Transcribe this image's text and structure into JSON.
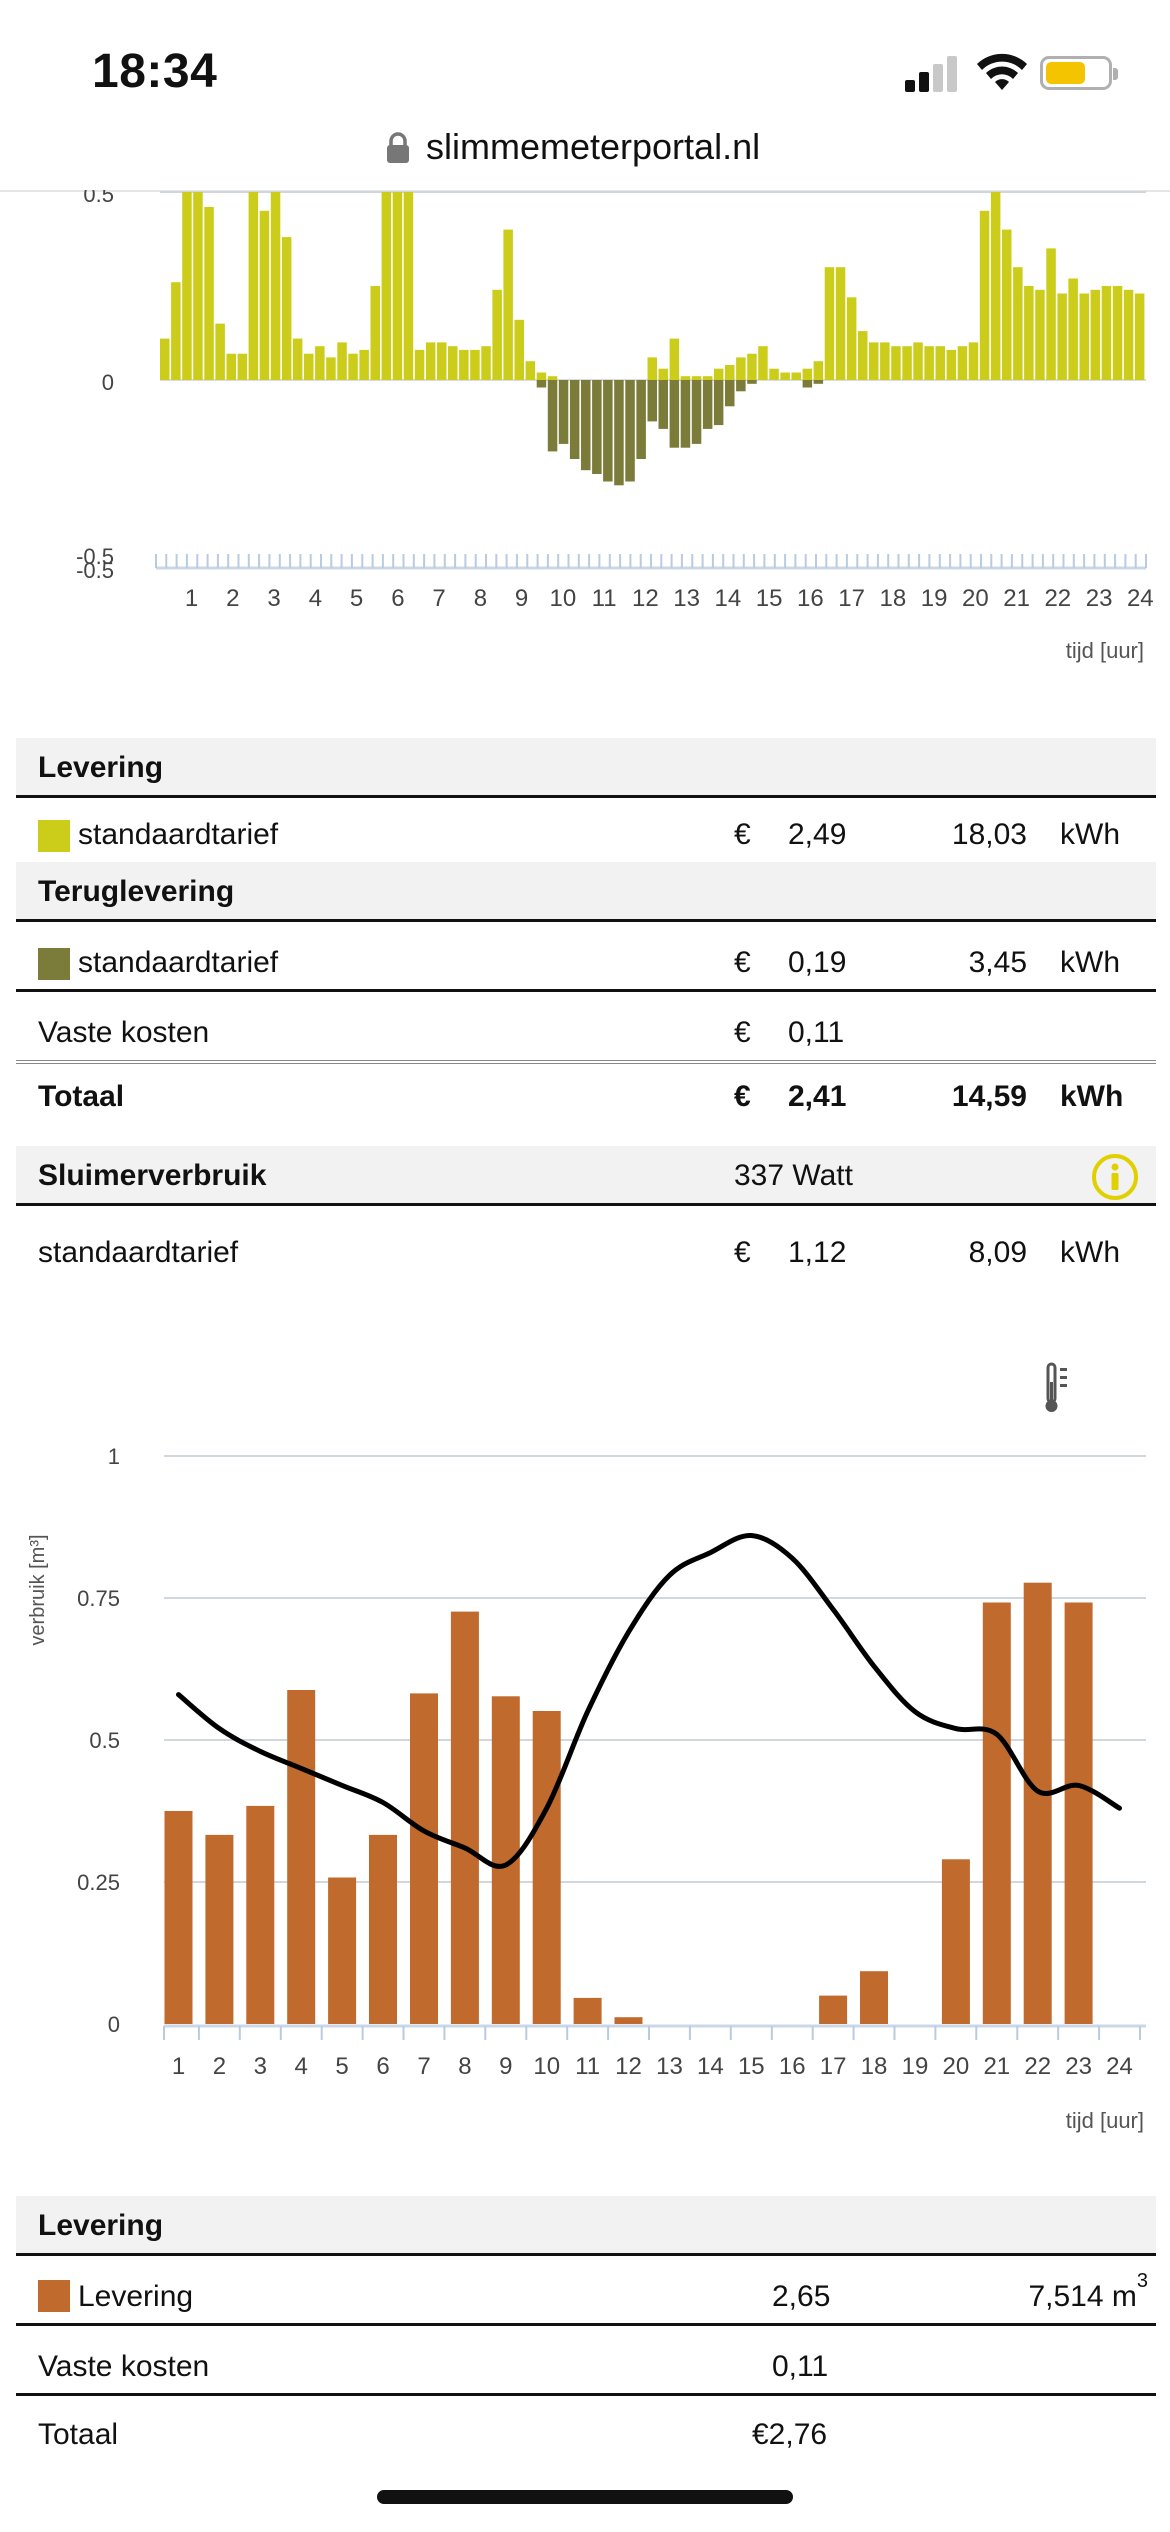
{
  "status": {
    "time": "18:34",
    "url": "slimmemeterportal.nl",
    "battery_level": 0.65,
    "signal_bars": 2,
    "battery_color": "#f5c400"
  },
  "colors": {
    "levering": "#cccc1a",
    "teruglevering": "#7b7b3a",
    "gas": "#c06a2e",
    "info": "#e0d000"
  },
  "electricity_chart": {
    "chart_data": {
      "type": "bar",
      "ytick_labels": [
        "0.5",
        "0",
        "-0.5"
      ],
      "yticks": [
        0.5,
        0,
        -0.5
      ],
      "ylim": [
        -0.5,
        0.5
      ],
      "xtick_labels": [
        "1",
        "2",
        "3",
        "4",
        "5",
        "6",
        "7",
        "8",
        "9",
        "10",
        "11",
        "12",
        "13",
        "14",
        "15",
        "16",
        "17",
        "18",
        "19",
        "20",
        "21",
        "22",
        "23",
        "24"
      ],
      "xlabel": "tijd [uur]",
      "levering_values": [
        0.11,
        0.26,
        0.5,
        0.5,
        0.46,
        0.15,
        0.07,
        0.07,
        0.5,
        0.45,
        0.5,
        0.38,
        0.11,
        0.07,
        0.09,
        0.06,
        0.1,
        0.07,
        0.08,
        0.25,
        0.5,
        0.5,
        0.5,
        0.08,
        0.1,
        0.1,
        0.09,
        0.08,
        0.08,
        0.09,
        0.24,
        0.4,
        0.16,
        0.05,
        0.02,
        0.01,
        0,
        0,
        0,
        0,
        0,
        0,
        0,
        0,
        0.06,
        0.03,
        0.11,
        0.01,
        0.01,
        0.01,
        0.03,
        0.04,
        0.06,
        0.07,
        0.09,
        0.03,
        0.02,
        0.02,
        0.03,
        0.05,
        0.3,
        0.3,
        0.22,
        0.13,
        0.1,
        0.1,
        0.09,
        0.09,
        0.1,
        0.09,
        0.09,
        0.08,
        0.09,
        0.1,
        0.45,
        0.5,
        0.4,
        0.3,
        0.25,
        0.24,
        0.35,
        0.23,
        0.27,
        0.23,
        0.24,
        0.25,
        0.25,
        0.24,
        0.23
      ],
      "teruglevering_values": [
        0,
        0,
        0,
        0,
        0,
        0,
        0,
        0,
        0,
        0,
        0,
        0,
        0,
        0,
        0,
        0,
        0,
        0,
        0,
        0,
        0,
        0,
        0,
        0,
        0,
        0,
        0,
        0,
        0,
        0,
        0,
        0,
        0,
        0,
        0.02,
        0.19,
        0.17,
        0.21,
        0.24,
        0.25,
        0.27,
        0.28,
        0.27,
        0.21,
        0.11,
        0.13,
        0.18,
        0.18,
        0.17,
        0.13,
        0.12,
        0.07,
        0.03,
        0.01,
        0,
        0,
        0,
        0,
        0.02,
        0.01,
        0,
        0,
        0,
        0,
        0,
        0,
        0,
        0,
        0,
        0,
        0,
        0,
        0,
        0,
        0,
        0,
        0,
        0,
        0,
        0,
        0,
        0,
        0,
        0,
        0,
        0,
        0,
        0,
        0
      ]
    }
  },
  "electricity_table": {
    "levering_header": "Levering",
    "levering_row": {
      "label": "standaardtarief",
      "currency": "€",
      "amount": "2,49",
      "usage": "18,03",
      "unit": "kWh"
    },
    "teruglevering_header": "Teruglevering",
    "teruglevering_row": {
      "label": "standaardtarief",
      "currency": "€",
      "amount": "0,19",
      "usage": "3,45",
      "unit": "kWh"
    },
    "vaste_kosten": {
      "label": "Vaste kosten",
      "currency": "€",
      "amount": "0,11"
    },
    "totaal": {
      "label": "Totaal",
      "currency": "€",
      "amount": "2,41",
      "usage": "14,59",
      "unit": "kWh"
    },
    "sluimer_header": {
      "label": "Sluimerverbruik",
      "value": "337 Watt"
    },
    "sluimer_row": {
      "label": "standaardtarief",
      "currency": "€",
      "amount": "1,12",
      "usage": "8,09",
      "unit": "kWh"
    }
  },
  "gas_chart": {
    "chart_data": {
      "type": "bar",
      "ylabel": "verbruik [m³]",
      "xlabel": "tijd [uur]",
      "ytick_labels": [
        "1",
        "0.75",
        "0.5",
        "0.25",
        "0"
      ],
      "yticks": [
        1,
        0.75,
        0.5,
        0.25,
        0
      ],
      "ylim": [
        0,
        1
      ],
      "categories": [
        "1",
        "2",
        "3",
        "4",
        "5",
        "6",
        "7",
        "8",
        "9",
        "10",
        "11",
        "12",
        "13",
        "14",
        "15",
        "16",
        "17",
        "18",
        "19",
        "20",
        "21",
        "22",
        "23",
        "24"
      ],
      "values": [
        0.375,
        0.333,
        0.384,
        0.588,
        0.258,
        0.333,
        0.582,
        0.726,
        0.577,
        0.551,
        0.046,
        0.012,
        0,
        0,
        0,
        0,
        0.05,
        0.093,
        0,
        0.29,
        0.742,
        0.777,
        0.742,
        0
      ],
      "temperature_line_relative": [
        0.58,
        0.52,
        0.48,
        0.45,
        0.42,
        0.39,
        0.34,
        0.31,
        0.28,
        0.38,
        0.55,
        0.69,
        0.79,
        0.83,
        0.86,
        0.82,
        0.73,
        0.63,
        0.55,
        0.52,
        0.51,
        0.41,
        0.42,
        0.38
      ]
    }
  },
  "gas_table": {
    "header": "Levering",
    "levering_row": {
      "label": "Levering",
      "amount": "2,65",
      "usage": "7,514 m",
      "unit_sup": "3"
    },
    "vaste_kosten": {
      "label": "Vaste kosten",
      "amount": "0,11"
    },
    "totaal": {
      "label": "Totaal",
      "amount": "€2,76"
    }
  }
}
